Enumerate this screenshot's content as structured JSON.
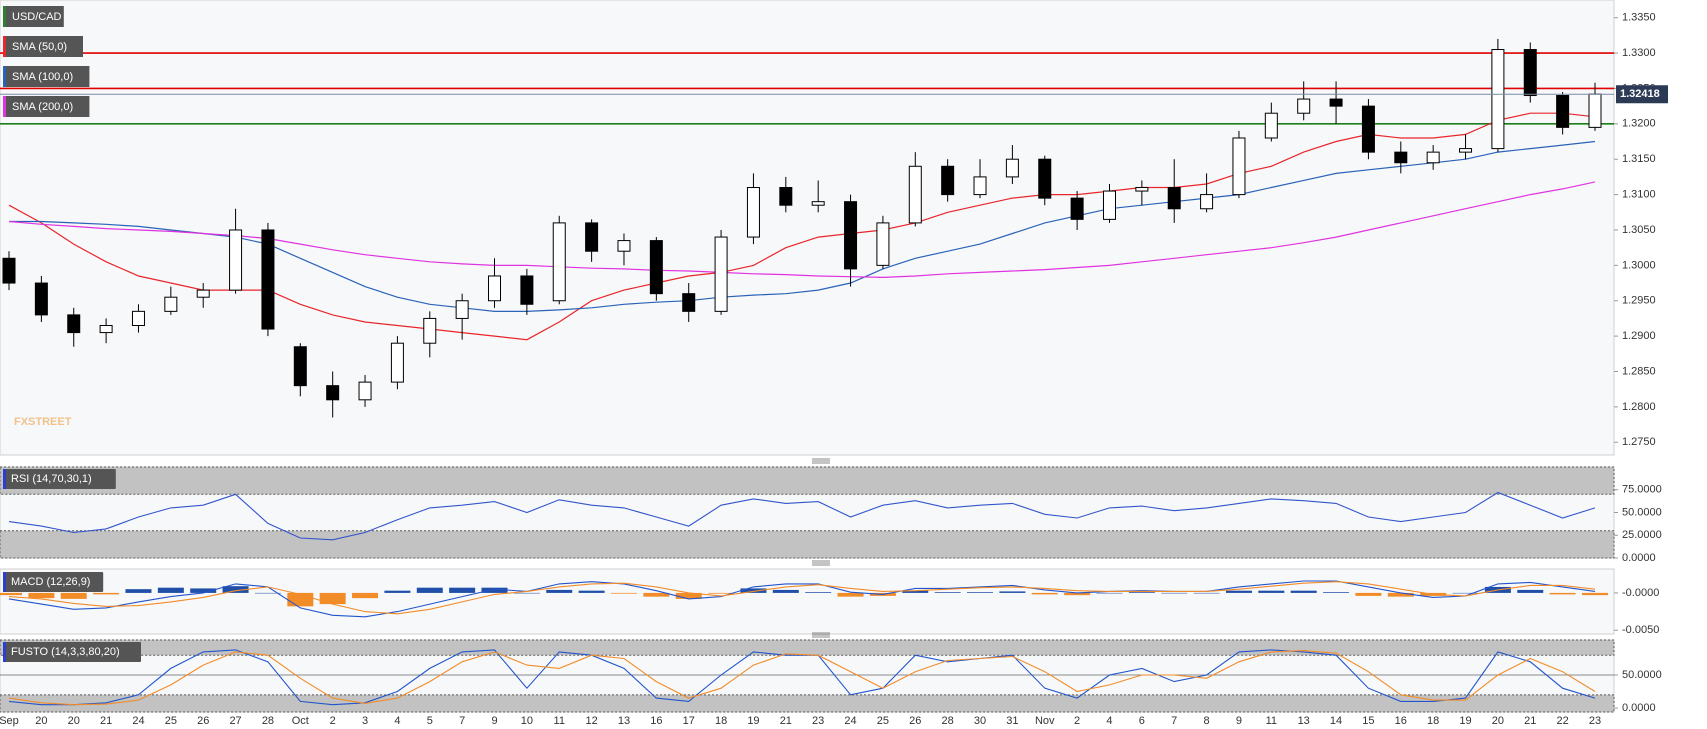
{
  "chart_data": [
    {
      "type": "candlestick",
      "name": "USD/CAD",
      "color": "#2e7d32",
      "watermark": "FXSTREET",
      "up_color": "#ffffff",
      "down_color": "#000000",
      "categories": [
        "Sep",
        "20",
        "20",
        "21",
        "24",
        "25",
        "26",
        "27",
        "28",
        "Oct",
        "2",
        "3",
        "4",
        "5",
        "7",
        "9",
        "10",
        "11",
        "12",
        "13",
        "16",
        "17",
        "18",
        "19",
        "21",
        "23",
        "24",
        "25",
        "26",
        "28",
        "30",
        "31",
        "Nov",
        "2",
        "4",
        "6",
        "7",
        "8",
        "9",
        "11",
        "13",
        "14",
        "15",
        "16",
        "18",
        "19",
        "20",
        "21",
        "22",
        "23"
      ],
      "open": [
        1.301,
        1.2975,
        1.293,
        1.2905,
        1.2915,
        1.2935,
        1.2955,
        1.2965,
        1.305,
        1.2885,
        1.283,
        1.281,
        1.2835,
        1.289,
        1.2925,
        1.295,
        1.2985,
        1.295,
        1.306,
        1.302,
        1.3035,
        1.296,
        1.2935,
        1.304,
        1.311,
        1.3085,
        1.309,
        1.3,
        1.306,
        1.314,
        1.31,
        1.3125,
        1.315,
        1.3095,
        1.3065,
        1.3105,
        1.311,
        1.308,
        1.31,
        1.318,
        1.3215,
        1.3235,
        1.3225,
        1.316,
        1.3145,
        1.316,
        1.3165,
        1.3305,
        1.324,
        1.3195
      ],
      "high": [
        1.302,
        1.2985,
        1.294,
        1.2925,
        1.2945,
        1.297,
        1.2975,
        1.308,
        1.306,
        1.289,
        1.285,
        1.2845,
        1.29,
        1.2935,
        1.296,
        1.301,
        1.2995,
        1.307,
        1.3065,
        1.3045,
        1.304,
        1.2975,
        1.305,
        1.313,
        1.3125,
        1.312,
        1.31,
        1.307,
        1.316,
        1.315,
        1.315,
        1.317,
        1.3155,
        1.3105,
        1.3115,
        1.312,
        1.315,
        1.313,
        1.319,
        1.323,
        1.326,
        1.326,
        1.3235,
        1.3175,
        1.317,
        1.3185,
        1.332,
        1.3315,
        1.3245,
        1.3258
      ],
      "low": [
        1.2965,
        1.292,
        1.2885,
        1.289,
        1.2905,
        1.293,
        1.294,
        1.296,
        1.29,
        1.2815,
        1.2785,
        1.28,
        1.2825,
        1.287,
        1.2895,
        1.294,
        1.293,
        1.2945,
        1.3005,
        1.3,
        1.295,
        1.292,
        1.293,
        1.303,
        1.3075,
        1.3075,
        1.297,
        1.2995,
        1.3055,
        1.309,
        1.3095,
        1.3115,
        1.3085,
        1.305,
        1.306,
        1.3085,
        1.306,
        1.3075,
        1.3095,
        1.3175,
        1.3205,
        1.32,
        1.315,
        1.313,
        1.3135,
        1.315,
        1.316,
        1.323,
        1.3185,
        1.319
      ],
      "close": [
        1.2975,
        1.293,
        1.2905,
        1.2915,
        1.2935,
        1.2955,
        1.2965,
        1.305,
        1.291,
        1.283,
        1.281,
        1.2835,
        1.289,
        1.2925,
        1.295,
        1.2985,
        1.2945,
        1.306,
        1.302,
        1.3035,
        1.296,
        1.2935,
        1.304,
        1.311,
        1.3085,
        1.309,
        1.2995,
        1.306,
        1.314,
        1.31,
        1.3125,
        1.315,
        1.3095,
        1.3065,
        1.3105,
        1.311,
        1.308,
        1.31,
        1.318,
        1.3215,
        1.3235,
        1.3225,
        1.316,
        1.3145,
        1.316,
        1.3165,
        1.3305,
        1.324,
        1.3195,
        1.3242
      ],
      "series": [
        {
          "name": "SMA (50,0)",
          "color": "#e8262b",
          "values": [
            1.3085,
            1.306,
            1.303,
            1.3005,
            1.2985,
            1.2975,
            1.2965,
            1.2965,
            1.2965,
            1.2945,
            1.293,
            1.292,
            1.2915,
            1.291,
            1.2905,
            1.29,
            1.2895,
            1.292,
            1.295,
            1.2965,
            1.2975,
            1.2985,
            1.299,
            1.3,
            1.3025,
            1.304,
            1.3045,
            1.305,
            1.306,
            1.3075,
            1.3085,
            1.3095,
            1.31,
            1.31,
            1.3105,
            1.311,
            1.311,
            1.3115,
            1.313,
            1.314,
            1.316,
            1.3175,
            1.3185,
            1.318,
            1.318,
            1.3185,
            1.3205,
            1.3215,
            1.3215,
            1.321
          ]
        },
        {
          "name": "SMA (100,0)",
          "color": "#2a62b8",
          "values": [
            1.3062,
            1.3062,
            1.306,
            1.3058,
            1.3055,
            1.305,
            1.3045,
            1.304,
            1.303,
            1.301,
            1.299,
            1.297,
            1.2955,
            1.2945,
            1.294,
            1.2935,
            1.2935,
            1.2937,
            1.294,
            1.2945,
            1.2948,
            1.295,
            1.2955,
            1.2958,
            1.296,
            1.2965,
            1.2975,
            1.2995,
            1.301,
            1.302,
            1.303,
            1.3045,
            1.306,
            1.307,
            1.308,
            1.3085,
            1.309,
            1.3095,
            1.31,
            1.311,
            1.312,
            1.313,
            1.3135,
            1.314,
            1.3145,
            1.315,
            1.316,
            1.3165,
            1.317,
            1.3175
          ]
        },
        {
          "name": "SMA (200,0)",
          "color": "#e033e0",
          "values": [
            1.3062,
            1.3058,
            1.3055,
            1.3052,
            1.305,
            1.3048,
            1.3045,
            1.3042,
            1.3038,
            1.303,
            1.3022,
            1.3015,
            1.301,
            1.3005,
            1.3002,
            1.3,
            1.3,
            1.2998,
            1.2996,
            1.2995,
            1.2993,
            1.2992,
            1.299,
            1.2988,
            1.2987,
            1.2985,
            1.2984,
            1.2983,
            1.2985,
            1.2988,
            1.299,
            1.2992,
            1.2994,
            1.2997,
            1.3,
            1.3005,
            1.301,
            1.3015,
            1.302,
            1.3025,
            1.3032,
            1.304,
            1.305,
            1.306,
            1.307,
            1.308,
            1.309,
            1.31,
            1.3108,
            1.3118
          ]
        }
      ],
      "hlines": [
        {
          "value": 1.33,
          "color": "#e00000"
        },
        {
          "value": 1.325,
          "color": "#e00000"
        },
        {
          "value": 1.32,
          "color": "#1a7f1a"
        }
      ],
      "last_price": 1.32418,
      "ylim": [
        1.2732,
        1.3375
      ],
      "yticks": [
        {
          "value": 1.275,
          "label": "1.2750"
        },
        {
          "value": 1.28,
          "label": "1.2800"
        },
        {
          "value": 1.285,
          "label": "1.2850"
        },
        {
          "value": 1.29,
          "label": "1.2900"
        },
        {
          "value": 1.295,
          "label": "1.2950"
        },
        {
          "value": 1.3,
          "label": "1.3000"
        },
        {
          "value": 1.305,
          "label": "1.3050"
        },
        {
          "value": 1.31,
          "label": "1.3100"
        },
        {
          "value": 1.315,
          "label": "1.3150"
        },
        {
          "value": 1.32,
          "label": "1.3200"
        },
        {
          "value": 1.325,
          "label": "1.3250"
        },
        {
          "value": 1.33,
          "label": "1.3300"
        },
        {
          "value": 1.335,
          "label": "1.3350"
        }
      ]
    },
    {
      "type": "indicator",
      "title": "RSI (14,70,30,1)",
      "title_color": "#2a3fd0",
      "upper_band": 70,
      "lower_band": 30,
      "lines": [
        {
          "color": "#3355cc",
          "values": [
            40,
            35,
            28,
            32,
            45,
            55,
            58,
            70,
            38,
            22,
            20,
            28,
            42,
            55,
            58,
            62,
            50,
            64,
            58,
            55,
            45,
            35,
            58,
            65,
            60,
            62,
            45,
            58,
            63,
            55,
            58,
            60,
            48,
            44,
            55,
            57,
            52,
            55,
            60,
            65,
            63,
            60,
            45,
            40,
            45,
            50,
            72,
            58,
            44,
            55
          ]
        }
      ],
      "ylim": [
        0,
        100
      ],
      "yticks": [
        {
          "value": 0,
          "label": "0.0000"
        },
        {
          "value": 25,
          "label": "25.0000"
        },
        {
          "value": 50,
          "label": "50.0000"
        },
        {
          "value": 75,
          "label": "75.0000"
        }
      ]
    },
    {
      "type": "macd",
      "title": "MACD (12,26,9)",
      "title_color": "#2a3fd0",
      "histogram": {
        "up_color": "#1f4fa8",
        "down_color": "#f28c28",
        "values": [
          -0.0003,
          -0.0007,
          -0.0008,
          -0.0002,
          0.0005,
          0.0007,
          0.0006,
          0.0009,
          0,
          -0.0018,
          -0.0015,
          -0.0007,
          0.0003,
          0.0007,
          0.0007,
          0.0007,
          0,
          0.0004,
          0.0003,
          -0.0001,
          -0.0005,
          -0.0008,
          -0.0001,
          0.0006,
          0.0004,
          0.0001,
          -0.0005,
          -0.0004,
          0.0003,
          0.0001,
          0.0001,
          0.0002,
          -0.0002,
          -0.0003,
          0,
          0.0001,
          0,
          0,
          0.0003,
          0.0003,
          0.0003,
          0.0001,
          -0.0004,
          -0.0005,
          -0.0004,
          0,
          0.0008,
          0.0004,
          -0.0002,
          -0.0003
        ]
      },
      "lines": [
        {
          "color": "#2255cc",
          "values": [
            -0.0008,
            -0.0015,
            -0.0022,
            -0.002,
            -0.0012,
            -0.0005,
            0,
            0.0012,
            0.0008,
            -0.002,
            -0.003,
            -0.0032,
            -0.0025,
            -0.0015,
            -0.0005,
            0.0005,
            0.0002,
            0.0012,
            0.0015,
            0.0012,
            0.0003,
            -0.0008,
            -0.0005,
            0.0008,
            0.0012,
            0.0012,
            0.0001,
            -0.0002,
            0.0006,
            0.0006,
            0.0008,
            0.001,
            0.0004,
            0,
            0.0002,
            0.0003,
            0.0002,
            0.0002,
            0.0008,
            0.0012,
            0.0016,
            0.0016,
            0.0008,
            0,
            -0.0006,
            -0.0004,
            0.0012,
            0.0014,
            0.0008,
            0.0002
          ]
        },
        {
          "color": "#f28c28",
          "values": [
            -0.0005,
            -0.0008,
            -0.0014,
            -0.0018,
            -0.0017,
            -0.0012,
            -0.0006,
            0.0003,
            0.0008,
            -0.0002,
            -0.0015,
            -0.0025,
            -0.0028,
            -0.0022,
            -0.0012,
            -0.0002,
            0.0002,
            0.0008,
            0.0012,
            0.0013,
            0.0008,
            0,
            -0.0004,
            0.0002,
            0.0008,
            0.0011,
            0.0006,
            0.0002,
            0.0003,
            0.0005,
            0.0007,
            0.0008,
            0.0006,
            0.0003,
            0.0002,
            0.0002,
            0.0002,
            0.0002,
            0.0005,
            0.0009,
            0.0013,
            0.0015,
            0.0012,
            0.0005,
            -0.0002,
            -0.0004,
            0.0004,
            0.001,
            0.001,
            0.0005
          ]
        }
      ],
      "ylim": [
        -0.0055,
        0.0032
      ],
      "yticks": [
        {
          "value": 0,
          "label": "-0.0000"
        },
        {
          "value": -0.005,
          "label": "-0.0050"
        }
      ]
    },
    {
      "type": "indicator",
      "title": "FUSTO (14,3,3,80,20)",
      "title_color": "#2a3fd0",
      "upper_band": 80,
      "lower_band": 20,
      "mid_line": 50,
      "lines": [
        {
          "color": "#2255cc",
          "values": [
            10,
            5,
            5,
            8,
            20,
            60,
            85,
            88,
            70,
            10,
            5,
            8,
            25,
            60,
            85,
            88,
            30,
            85,
            80,
            60,
            15,
            10,
            50,
            85,
            80,
            80,
            20,
            30,
            80,
            70,
            75,
            80,
            30,
            15,
            50,
            60,
            40,
            50,
            85,
            88,
            85,
            80,
            30,
            10,
            10,
            15,
            85,
            70,
            30,
            15
          ]
        },
        {
          "color": "#f28c28",
          "values": [
            15,
            8,
            5,
            6,
            12,
            35,
            65,
            85,
            80,
            45,
            15,
            7,
            15,
            40,
            70,
            85,
            65,
            60,
            80,
            75,
            40,
            15,
            30,
            65,
            82,
            80,
            55,
            30,
            55,
            72,
            75,
            78,
            55,
            25,
            35,
            50,
            50,
            45,
            70,
            85,
            87,
            83,
            55,
            20,
            12,
            12,
            50,
            75,
            55,
            25
          ]
        }
      ],
      "ylim": [
        -6,
        103
      ],
      "yticks": [
        {
          "value": 0,
          "label": "0.0000"
        },
        {
          "value": 50,
          "label": "50.0000"
        }
      ]
    }
  ]
}
